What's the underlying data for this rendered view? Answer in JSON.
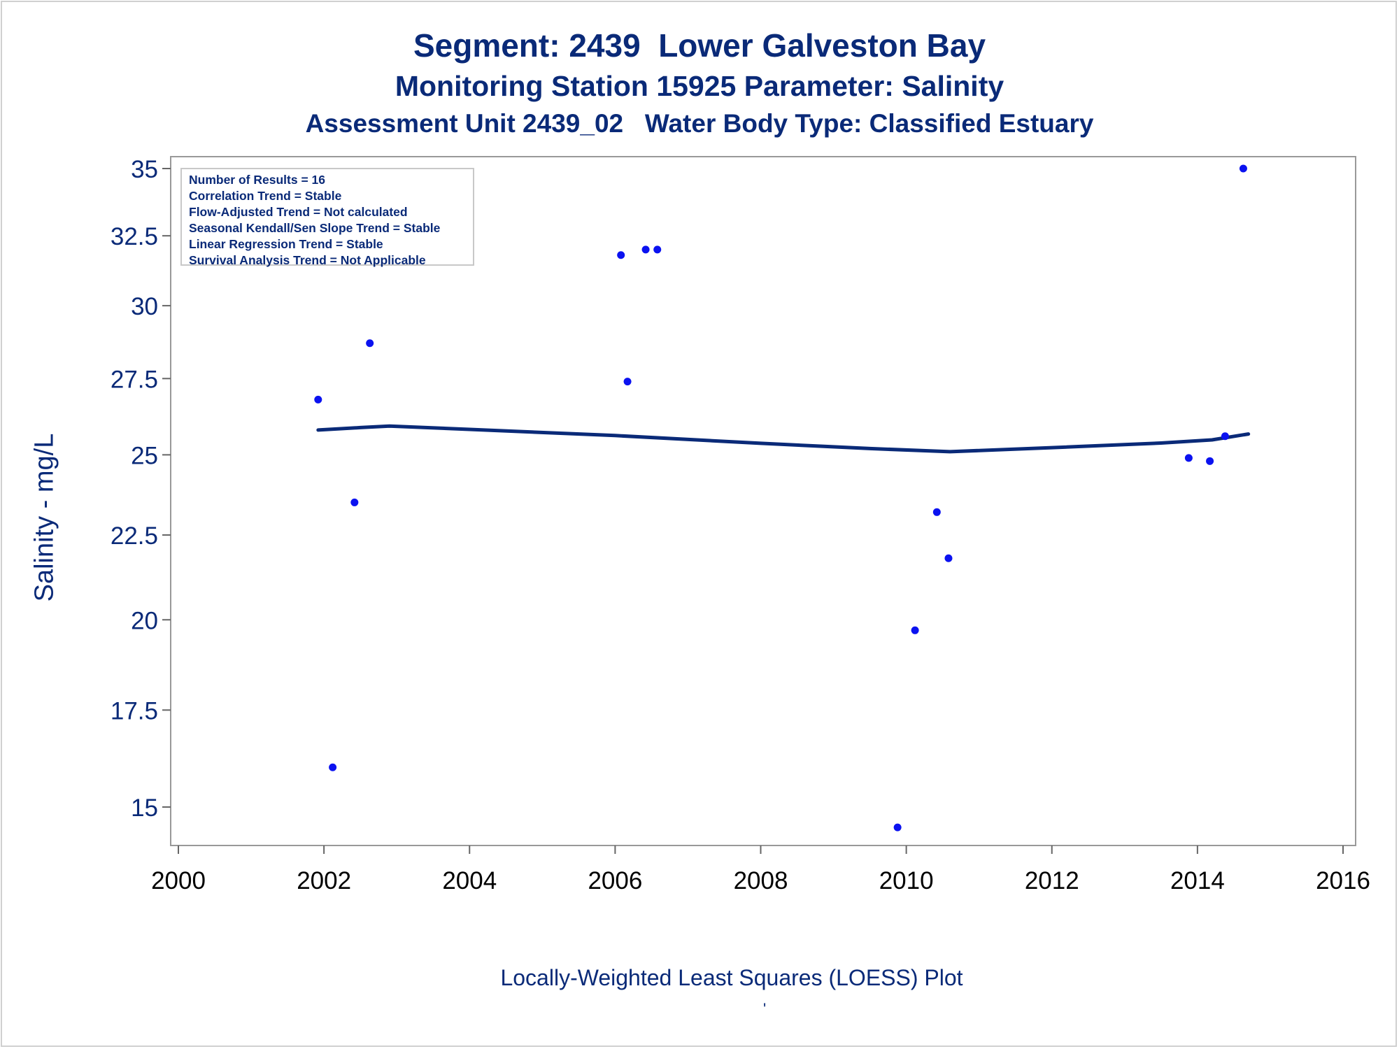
{
  "chart_data": {
    "type": "scatter",
    "title": "Segment: 2439  Lower Galveston Bay",
    "subtitle": "Monitoring Station 15925 Parameter: Salinity",
    "subtitle2": "Assessment Unit 2439_02   Water Body Type: Classified Estuary",
    "ylabel": "Salinity - mg/L",
    "xlabel": "",
    "footnote": "Locally-Weighted Least Squares (LOESS) Plot",
    "footnote_mark": "'",
    "xlim": [
      2000,
      2016
    ],
    "ylim": [
      14.25,
      35.25
    ],
    "x_ticks": [
      2000,
      2002,
      2004,
      2006,
      2008,
      2010,
      2012,
      2014,
      2016
    ],
    "y_ticks": [
      15,
      17.5,
      20,
      22.5,
      25,
      27.5,
      30,
      32.5,
      35
    ],
    "y_scale": "square-root",
    "grid": false,
    "info_box": [
      "Number of Results = 16",
      "Correlation Trend = Stable",
      "Flow-Adjusted Trend = Not calculated",
      "Seasonal Kendall/Sen Slope Trend = Stable",
      "Linear Regression Trend = Stable",
      "Survival Analysis Trend = Not Applicable"
    ],
    "point_color": "#0b12f0",
    "line_color": "#0a2a78",
    "points": [
      {
        "x": 2001.92,
        "y": 26.8
      },
      {
        "x": 2002.12,
        "y": 16.0
      },
      {
        "x": 2002.42,
        "y": 23.5
      },
      {
        "x": 2002.63,
        "y": 28.7
      },
      {
        "x": 2006.08,
        "y": 31.8
      },
      {
        "x": 2006.17,
        "y": 27.4
      },
      {
        "x": 2006.42,
        "y": 32.0
      },
      {
        "x": 2006.58,
        "y": 32.0
      },
      {
        "x": 2009.88,
        "y": 14.5
      },
      {
        "x": 2010.12,
        "y": 19.7
      },
      {
        "x": 2010.42,
        "y": 23.2
      },
      {
        "x": 2010.58,
        "y": 21.8
      },
      {
        "x": 2013.88,
        "y": 24.9
      },
      {
        "x": 2014.17,
        "y": 24.8
      },
      {
        "x": 2014.38,
        "y": 25.6
      },
      {
        "x": 2014.63,
        "y": 35.0
      }
    ],
    "loess": [
      {
        "x": 2001.92,
        "y": 25.8
      },
      {
        "x": 2002.5,
        "y": 25.88
      },
      {
        "x": 2002.9,
        "y": 25.93
      },
      {
        "x": 2004,
        "y": 25.82
      },
      {
        "x": 2006,
        "y": 25.62
      },
      {
        "x": 2008,
        "y": 25.37
      },
      {
        "x": 2009.5,
        "y": 25.2
      },
      {
        "x": 2010.6,
        "y": 25.1
      },
      {
        "x": 2012,
        "y": 25.23
      },
      {
        "x": 2013.5,
        "y": 25.38
      },
      {
        "x": 2014.2,
        "y": 25.48
      },
      {
        "x": 2014.7,
        "y": 25.67
      }
    ]
  }
}
